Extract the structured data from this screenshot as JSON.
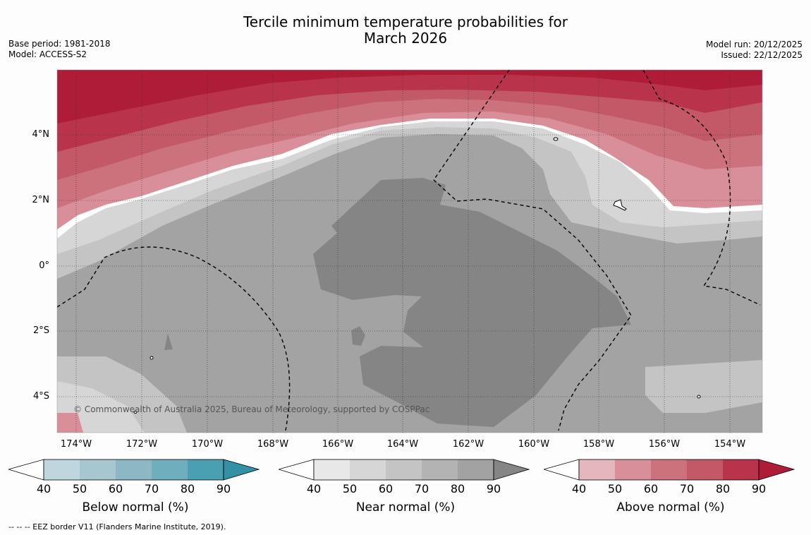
{
  "title": {
    "line1": "Tercile minimum temperature probabilities for",
    "line2": "March 2026"
  },
  "meta": {
    "base_period": "Base period: 1981-2018",
    "model": "Model: ACCESS-S2",
    "model_run": "Model run: 20/12/2025",
    "issued": "Issued: 22/12/2025"
  },
  "map": {
    "copyright": "© Commonwealth of Australia 2025, Bureau of Meteorology, supported by COSPPac",
    "lat_labels": [
      "4°N",
      "2°N",
      "0°",
      "2°S",
      "4°S"
    ],
    "lon_labels": [
      "174°W",
      "172°W",
      "170°W",
      "168°W",
      "166°W",
      "164°W",
      "162°W",
      "160°W",
      "158°W",
      "156°W",
      "154°W"
    ]
  },
  "colorbars": [
    {
      "label": "Below normal (%)",
      "ticks": [
        "40",
        "50",
        "60",
        "70",
        "80",
        "90"
      ],
      "colors": [
        "#ffffff",
        "#bfd6de",
        "#a6c7cf",
        "#8cb8c6",
        "#6faebd",
        "#4a9fb0",
        "#3391a6"
      ]
    },
    {
      "label": "Near normal (%)",
      "ticks": [
        "40",
        "50",
        "60",
        "70",
        "80",
        "90"
      ],
      "colors": [
        "#ffffff",
        "#e8e8e8",
        "#d6d6d6",
        "#c4c4c4",
        "#b3b3b3",
        "#a2a2a2",
        "#858585"
      ]
    },
    {
      "label": "Above normal (%)",
      "ticks": [
        "40",
        "50",
        "60",
        "70",
        "80",
        "90"
      ],
      "colors": [
        "#ffffff",
        "#e3b7bd",
        "#d88f99",
        "#cc727c",
        "#c35867",
        "#b9344b",
        "#ae1c38"
      ]
    }
  ],
  "footnote": "--  --  -- EEZ border V11 (Flanders Marine Institute, 2019)."
}
